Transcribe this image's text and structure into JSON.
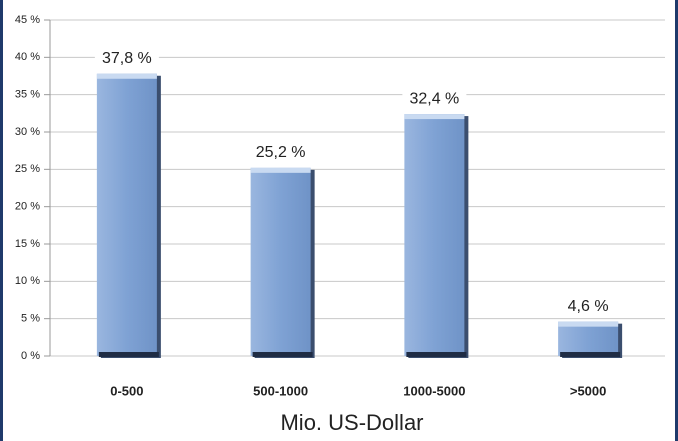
{
  "chart_data": {
    "type": "bar",
    "categories": [
      "0-500",
      "500-1000",
      "1000-5000",
      ">5000"
    ],
    "values": [
      37.8,
      25.2,
      32.4,
      4.6
    ],
    "value_labels": [
      "37,8 %",
      "25,2 %",
      "32,4 %",
      "4,6 %"
    ],
    "color": "#7fa2d4",
    "xlabel": "Mio. US-Dollar",
    "ylim": [
      0,
      45
    ],
    "yticks": [
      {
        "value": 0,
        "label": "0 %"
      },
      {
        "value": 5,
        "label": "5 %"
      },
      {
        "value": 10,
        "label": "10 %"
      },
      {
        "value": 15,
        "label": "15 %"
      },
      {
        "value": 20,
        "label": "20 %"
      },
      {
        "value": 25,
        "label": "25 %"
      },
      {
        "value": 30,
        "label": "30 %"
      },
      {
        "value": 35,
        "label": "35 %"
      },
      {
        "value": 40,
        "label": "40 %"
      },
      {
        "value": 45,
        "label": "45 %"
      }
    ],
    "grid": true
  }
}
